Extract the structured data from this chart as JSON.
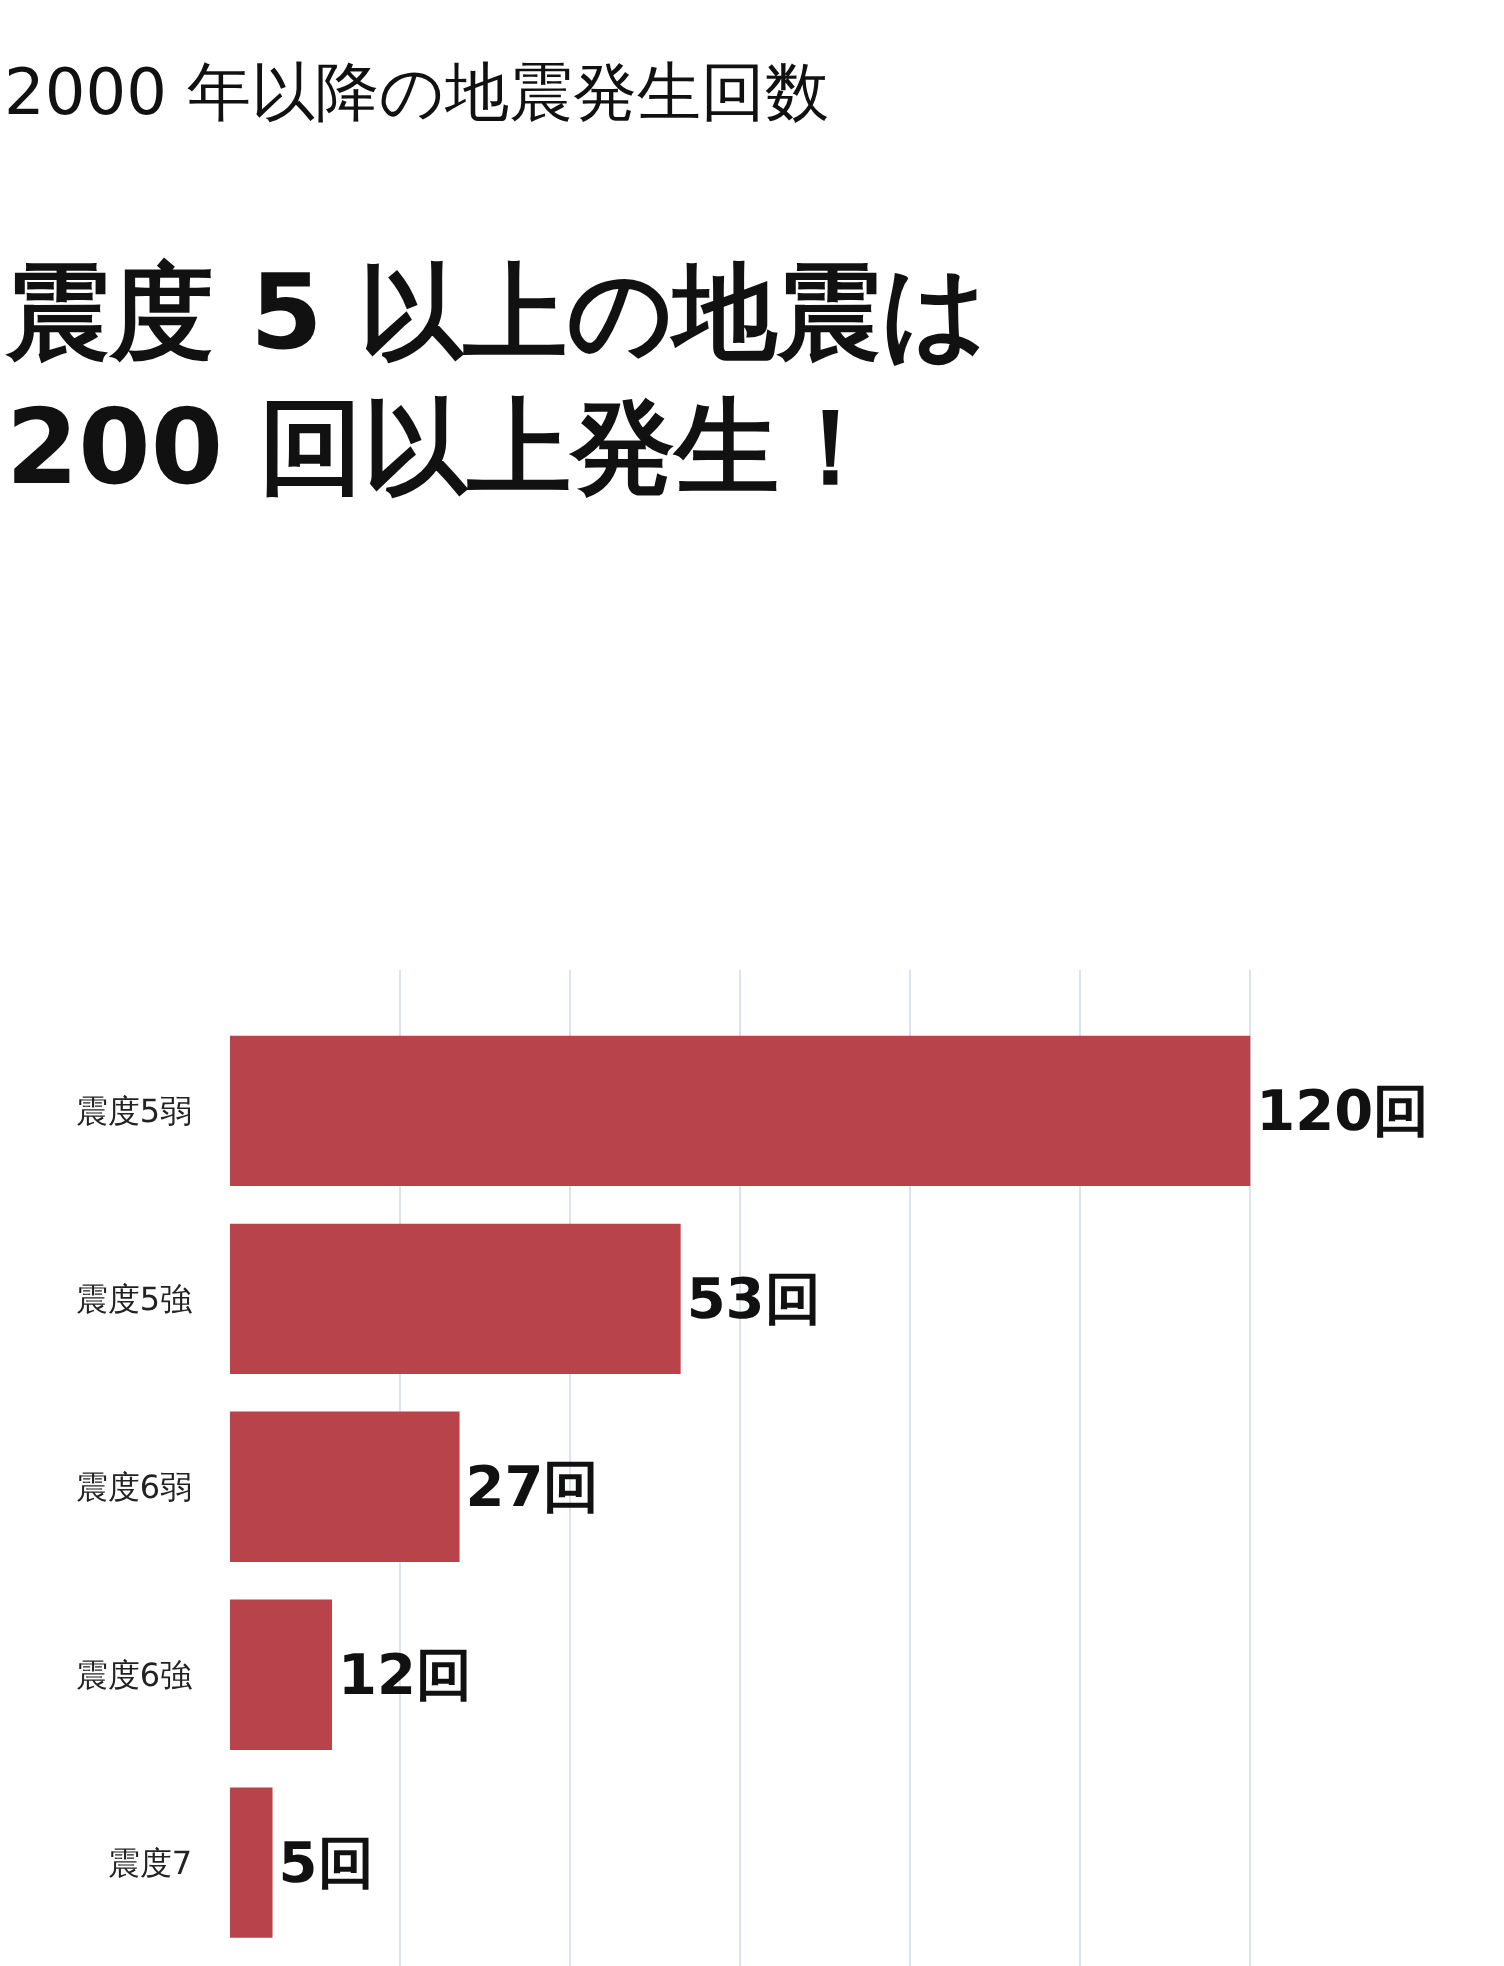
{
  "chart_data": {
    "type": "bar",
    "orientation": "horizontal",
    "title": "2000 年以降の地震発生回数",
    "subtitle": "震度 5 以上の地震は\n200 回以上発生！",
    "categories": [
      "震度5弱",
      "震度5強",
      "震度6弱",
      "震度6強",
      "震度7"
    ],
    "values": [
      120,
      53,
      27,
      12,
      5
    ],
    "color": "#b9434b",
    "value_labels": [
      "120回",
      "53回",
      "27回",
      "12回",
      "5回"
    ],
    "grid": "x",
    "legend": false
  }
}
